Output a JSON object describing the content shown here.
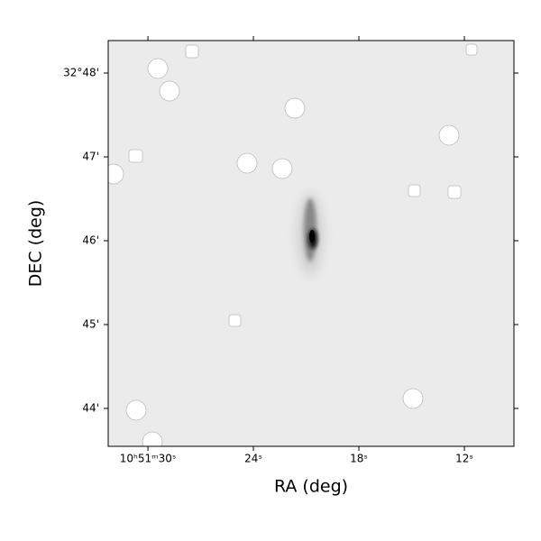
{
  "chart_data": {
    "type": "image",
    "xlabel": "RA (deg)",
    "ylabel": "DEC (deg)",
    "xlim": [
      32.26,
      9.18
    ],
    "xticks": [
      {
        "value": 30,
        "label": "10ʰ51ᵐ30ˢ"
      },
      {
        "value": 24,
        "label": "24ˢ"
      },
      {
        "value": 18,
        "label": "18ˢ"
      },
      {
        "value": 12,
        "label": "12ˢ"
      }
    ],
    "ylim": [
      43.548,
      48.387
    ],
    "yticks": [
      {
        "value": 48,
        "label": "32°48'"
      },
      {
        "value": 47,
        "label": "47'"
      },
      {
        "value": 46,
        "label": "46'"
      },
      {
        "value": 45,
        "label": "45'"
      },
      {
        "value": 44,
        "label": "44'"
      }
    ]
  }
}
